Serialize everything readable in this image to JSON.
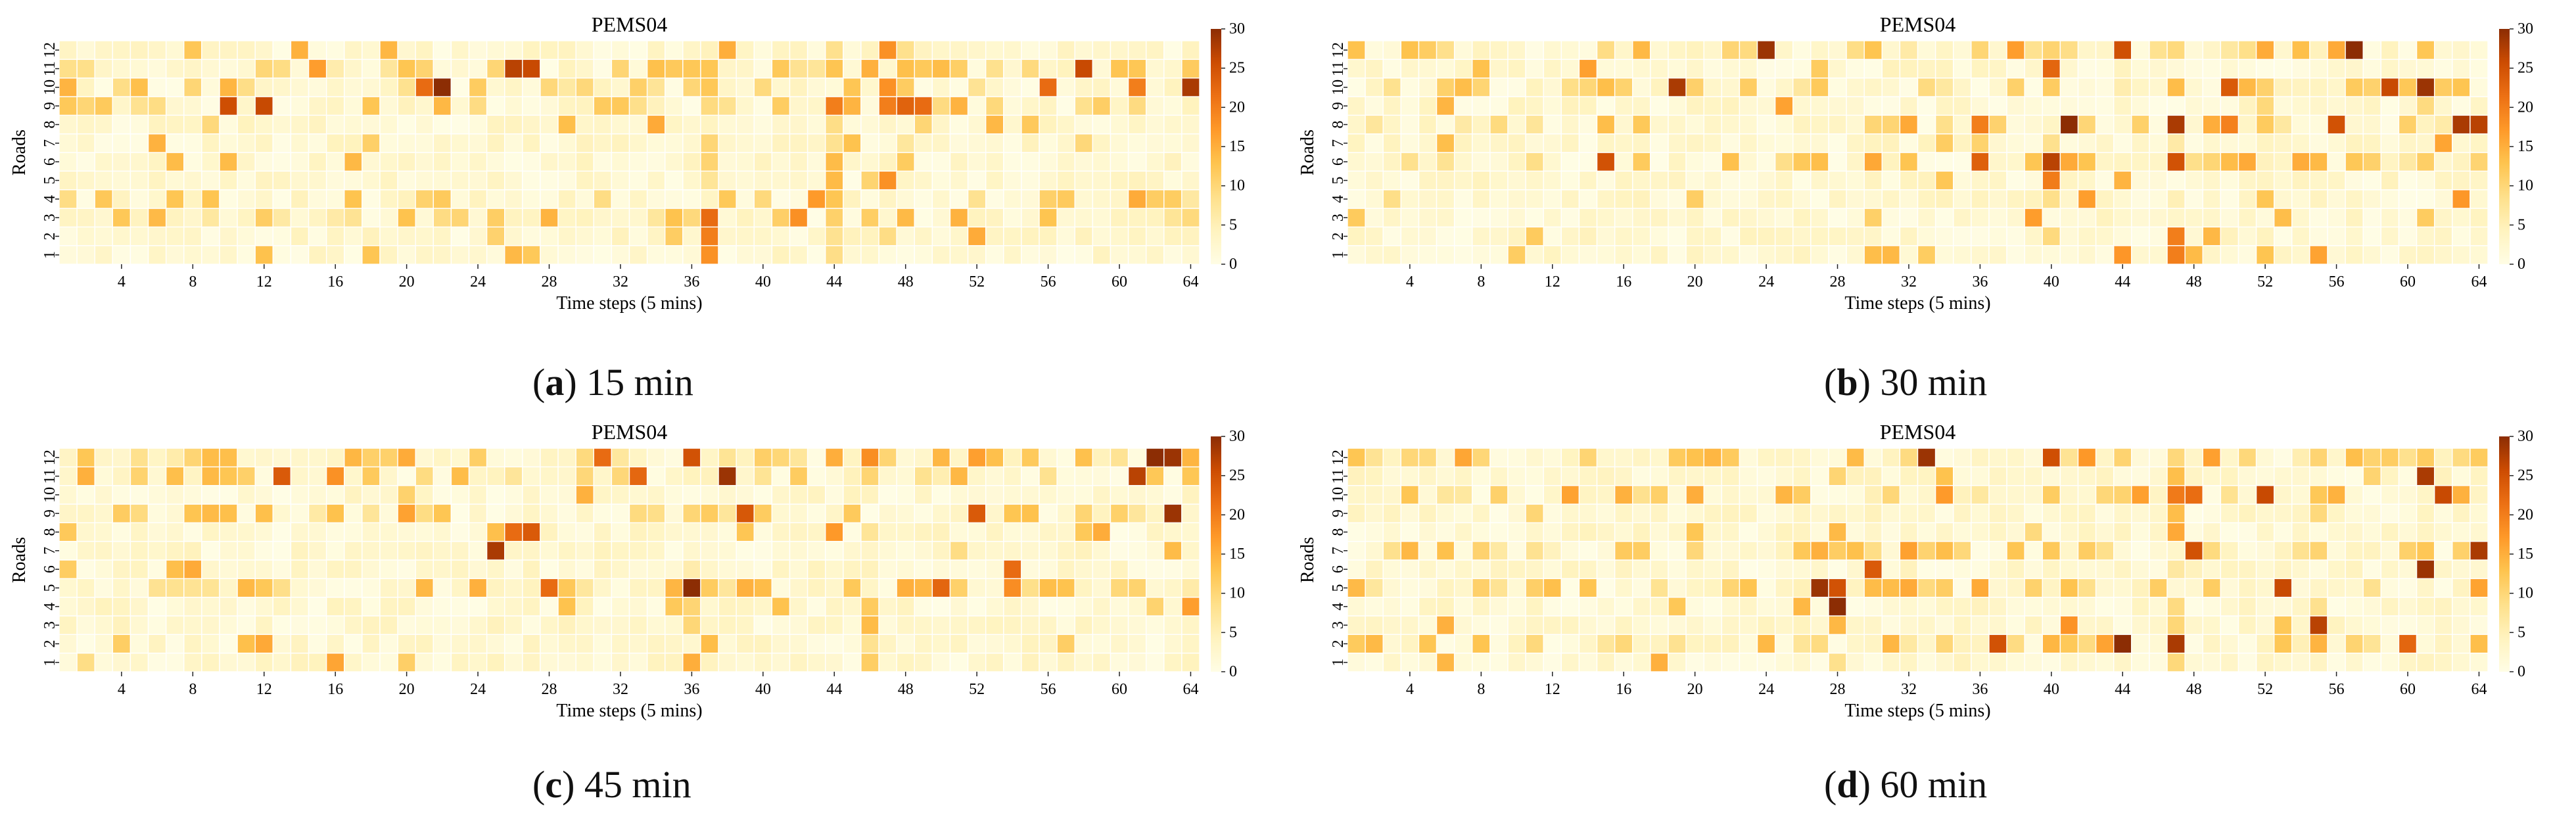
{
  "colorscale": {
    "vmin": 0,
    "vmax": 30,
    "stops": [
      "#fffde5",
      "#fff3bf",
      "#fee08b",
      "#fec44f",
      "#fe9929",
      "#ec7014",
      "#cc4c02",
      "#8c2d04"
    ],
    "ticks": [
      "0",
      "5",
      "10",
      "15",
      "20",
      "25",
      "30"
    ]
  },
  "chart_data": [
    {
      "type": "heatmap",
      "title": "PEMS04",
      "xlabel": "Time steps (5 mins)",
      "ylabel": "Roads",
      "x_ticks": [
        "4",
        "8",
        "12",
        "16",
        "20",
        "24",
        "28",
        "32",
        "36",
        "40",
        "44",
        "48",
        "52",
        "56",
        "60",
        "64"
      ],
      "y_ticks": [
        "1",
        "2",
        "3",
        "4",
        "5",
        "6",
        "7",
        "8",
        "9",
        "10",
        "11",
        "12"
      ],
      "caption": {
        "prefix": "(",
        "letter": "a",
        "suffix": ") 15 min"
      },
      "hotspots": [
        {
          "x": 22,
          "y": 10,
          "v": 30
        },
        {
          "x": 26,
          "y": 11,
          "v": 27
        },
        {
          "x": 27,
          "y": 11,
          "v": 26
        },
        {
          "x": 21,
          "y": 10,
          "v": 22
        },
        {
          "x": 58,
          "y": 11,
          "v": 26
        },
        {
          "x": 64,
          "y": 10,
          "v": 28
        },
        {
          "x": 37,
          "y": 3,
          "v": 22
        },
        {
          "x": 37,
          "y": 2,
          "v": 20
        },
        {
          "x": 37,
          "y": 1,
          "v": 18
        },
        {
          "x": 48,
          "y": 9,
          "v": 23
        },
        {
          "x": 49,
          "y": 9,
          "v": 22
        },
        {
          "x": 47,
          "y": 9,
          "v": 20
        },
        {
          "x": 44,
          "y": 9,
          "v": 20
        },
        {
          "x": 56,
          "y": 10,
          "v": 22
        },
        {
          "x": 47,
          "y": 12,
          "v": 18
        },
        {
          "x": 43,
          "y": 4,
          "v": 17
        },
        {
          "x": 61,
          "y": 10,
          "v": 20
        }
      ],
      "hot_rows": [
        10,
        11,
        9,
        4,
        3
      ],
      "hot_cols": [
        37,
        44,
        47,
        48
      ],
      "intensity": 0.85,
      "seed": 11
    },
    {
      "type": "heatmap",
      "title": "PEMS04",
      "xlabel": "Time steps (5 mins)",
      "ylabel": "Roads",
      "x_ticks": [
        "4",
        "8",
        "12",
        "16",
        "20",
        "24",
        "28",
        "32",
        "36",
        "40",
        "44",
        "48",
        "52",
        "56",
        "60",
        "64"
      ],
      "y_ticks": [
        "1",
        "2",
        "3",
        "4",
        "5",
        "6",
        "7",
        "8",
        "9",
        "10",
        "11",
        "12"
      ],
      "caption": {
        "prefix": "(",
        "letter": "b",
        "suffix": ") 30 min"
      },
      "hotspots": [
        {
          "x": 24,
          "y": 12,
          "v": 29
        },
        {
          "x": 19,
          "y": 10,
          "v": 28
        },
        {
          "x": 41,
          "y": 8,
          "v": 30
        },
        {
          "x": 40,
          "y": 6,
          "v": 27
        },
        {
          "x": 47,
          "y": 8,
          "v": 28
        },
        {
          "x": 47,
          "y": 6,
          "v": 25
        },
        {
          "x": 57,
          "y": 12,
          "v": 30
        },
        {
          "x": 61,
          "y": 10,
          "v": 29
        },
        {
          "x": 59,
          "y": 10,
          "v": 26
        },
        {
          "x": 63,
          "y": 8,
          "v": 28
        },
        {
          "x": 64,
          "y": 8,
          "v": 27
        },
        {
          "x": 56,
          "y": 8,
          "v": 25
        },
        {
          "x": 50,
          "y": 10,
          "v": 24
        },
        {
          "x": 47,
          "y": 1,
          "v": 20
        },
        {
          "x": 47,
          "y": 2,
          "v": 20
        }
      ],
      "hot_rows": [
        8,
        10,
        6,
        12
      ],
      "hot_cols": [
        40,
        47
      ],
      "intensity": 0.95,
      "seed": 23
    },
    {
      "type": "heatmap",
      "title": "PEMS04",
      "xlabel": "Time steps (5 mins)",
      "ylabel": "Roads",
      "x_ticks": [
        "4",
        "8",
        "12",
        "16",
        "20",
        "24",
        "28",
        "32",
        "36",
        "40",
        "44",
        "48",
        "52",
        "56",
        "60",
        "64"
      ],
      "y_ticks": [
        "1",
        "2",
        "3",
        "4",
        "5",
        "6",
        "7",
        "8",
        "9",
        "10",
        "11",
        "12"
      ],
      "caption": {
        "prefix": "(",
        "letter": "c",
        "suffix": ") 45 min"
      },
      "hotspots": [
        {
          "x": 25,
          "y": 7,
          "v": 28
        },
        {
          "x": 36,
          "y": 5,
          "v": 30
        },
        {
          "x": 38,
          "y": 11,
          "v": 29
        },
        {
          "x": 27,
          "y": 8,
          "v": 24
        },
        {
          "x": 26,
          "y": 8,
          "v": 22
        },
        {
          "x": 36,
          "y": 12,
          "v": 25
        },
        {
          "x": 62,
          "y": 12,
          "v": 30
        },
        {
          "x": 63,
          "y": 12,
          "v": 29
        },
        {
          "x": 61,
          "y": 11,
          "v": 27
        },
        {
          "x": 63,
          "y": 9,
          "v": 29
        },
        {
          "x": 52,
          "y": 9,
          "v": 24
        },
        {
          "x": 54,
          "y": 6,
          "v": 22
        },
        {
          "x": 31,
          "y": 12,
          "v": 22
        },
        {
          "x": 28,
          "y": 5,
          "v": 22
        },
        {
          "x": 13,
          "y": 11,
          "v": 24
        }
      ],
      "hot_rows": [
        12,
        11,
        9,
        5
      ],
      "hot_cols": [
        36,
        46
      ],
      "intensity": 0.92,
      "seed": 37
    },
    {
      "type": "heatmap",
      "title": "PEMS04",
      "xlabel": "Time steps (5 mins)",
      "ylabel": "Roads",
      "x_ticks": [
        "4",
        "8",
        "12",
        "16",
        "20",
        "24",
        "28",
        "32",
        "36",
        "40",
        "44",
        "48",
        "52",
        "56",
        "60",
        "64"
      ],
      "y_ticks": [
        "1",
        "2",
        "3",
        "4",
        "5",
        "6",
        "7",
        "8",
        "9",
        "10",
        "11",
        "12"
      ],
      "caption": {
        "prefix": "(",
        "letter": "d",
        "suffix": ") 60 min"
      },
      "hotspots": [
        {
          "x": 33,
          "y": 12,
          "v": 29
        },
        {
          "x": 27,
          "y": 5,
          "v": 29
        },
        {
          "x": 28,
          "y": 4,
          "v": 30
        },
        {
          "x": 28,
          "y": 5,
          "v": 25
        },
        {
          "x": 44,
          "y": 2,
          "v": 30
        },
        {
          "x": 47,
          "y": 2,
          "v": 28
        },
        {
          "x": 55,
          "y": 3,
          "v": 27
        },
        {
          "x": 53,
          "y": 5,
          "v": 26
        },
        {
          "x": 61,
          "y": 11,
          "v": 28
        },
        {
          "x": 62,
          "y": 10,
          "v": 26
        },
        {
          "x": 61,
          "y": 6,
          "v": 29
        },
        {
          "x": 64,
          "y": 7,
          "v": 28
        },
        {
          "x": 52,
          "y": 10,
          "v": 26
        },
        {
          "x": 48,
          "y": 7,
          "v": 25
        },
        {
          "x": 30,
          "y": 6,
          "v": 24
        }
      ],
      "hot_rows": [
        2,
        5,
        7,
        10,
        12
      ],
      "hot_cols": [
        28,
        47,
        55
      ],
      "intensity": 1.0,
      "seed": 53
    }
  ]
}
